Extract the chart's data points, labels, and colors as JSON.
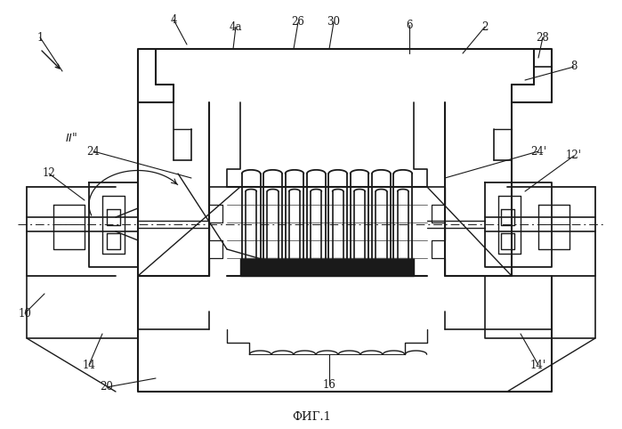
{
  "caption": "ФИГ.1",
  "background_color": "#ffffff",
  "line_color": "#1a1a1a",
  "figsize": [
    6.99,
    4.82
  ],
  "dpi": 100
}
